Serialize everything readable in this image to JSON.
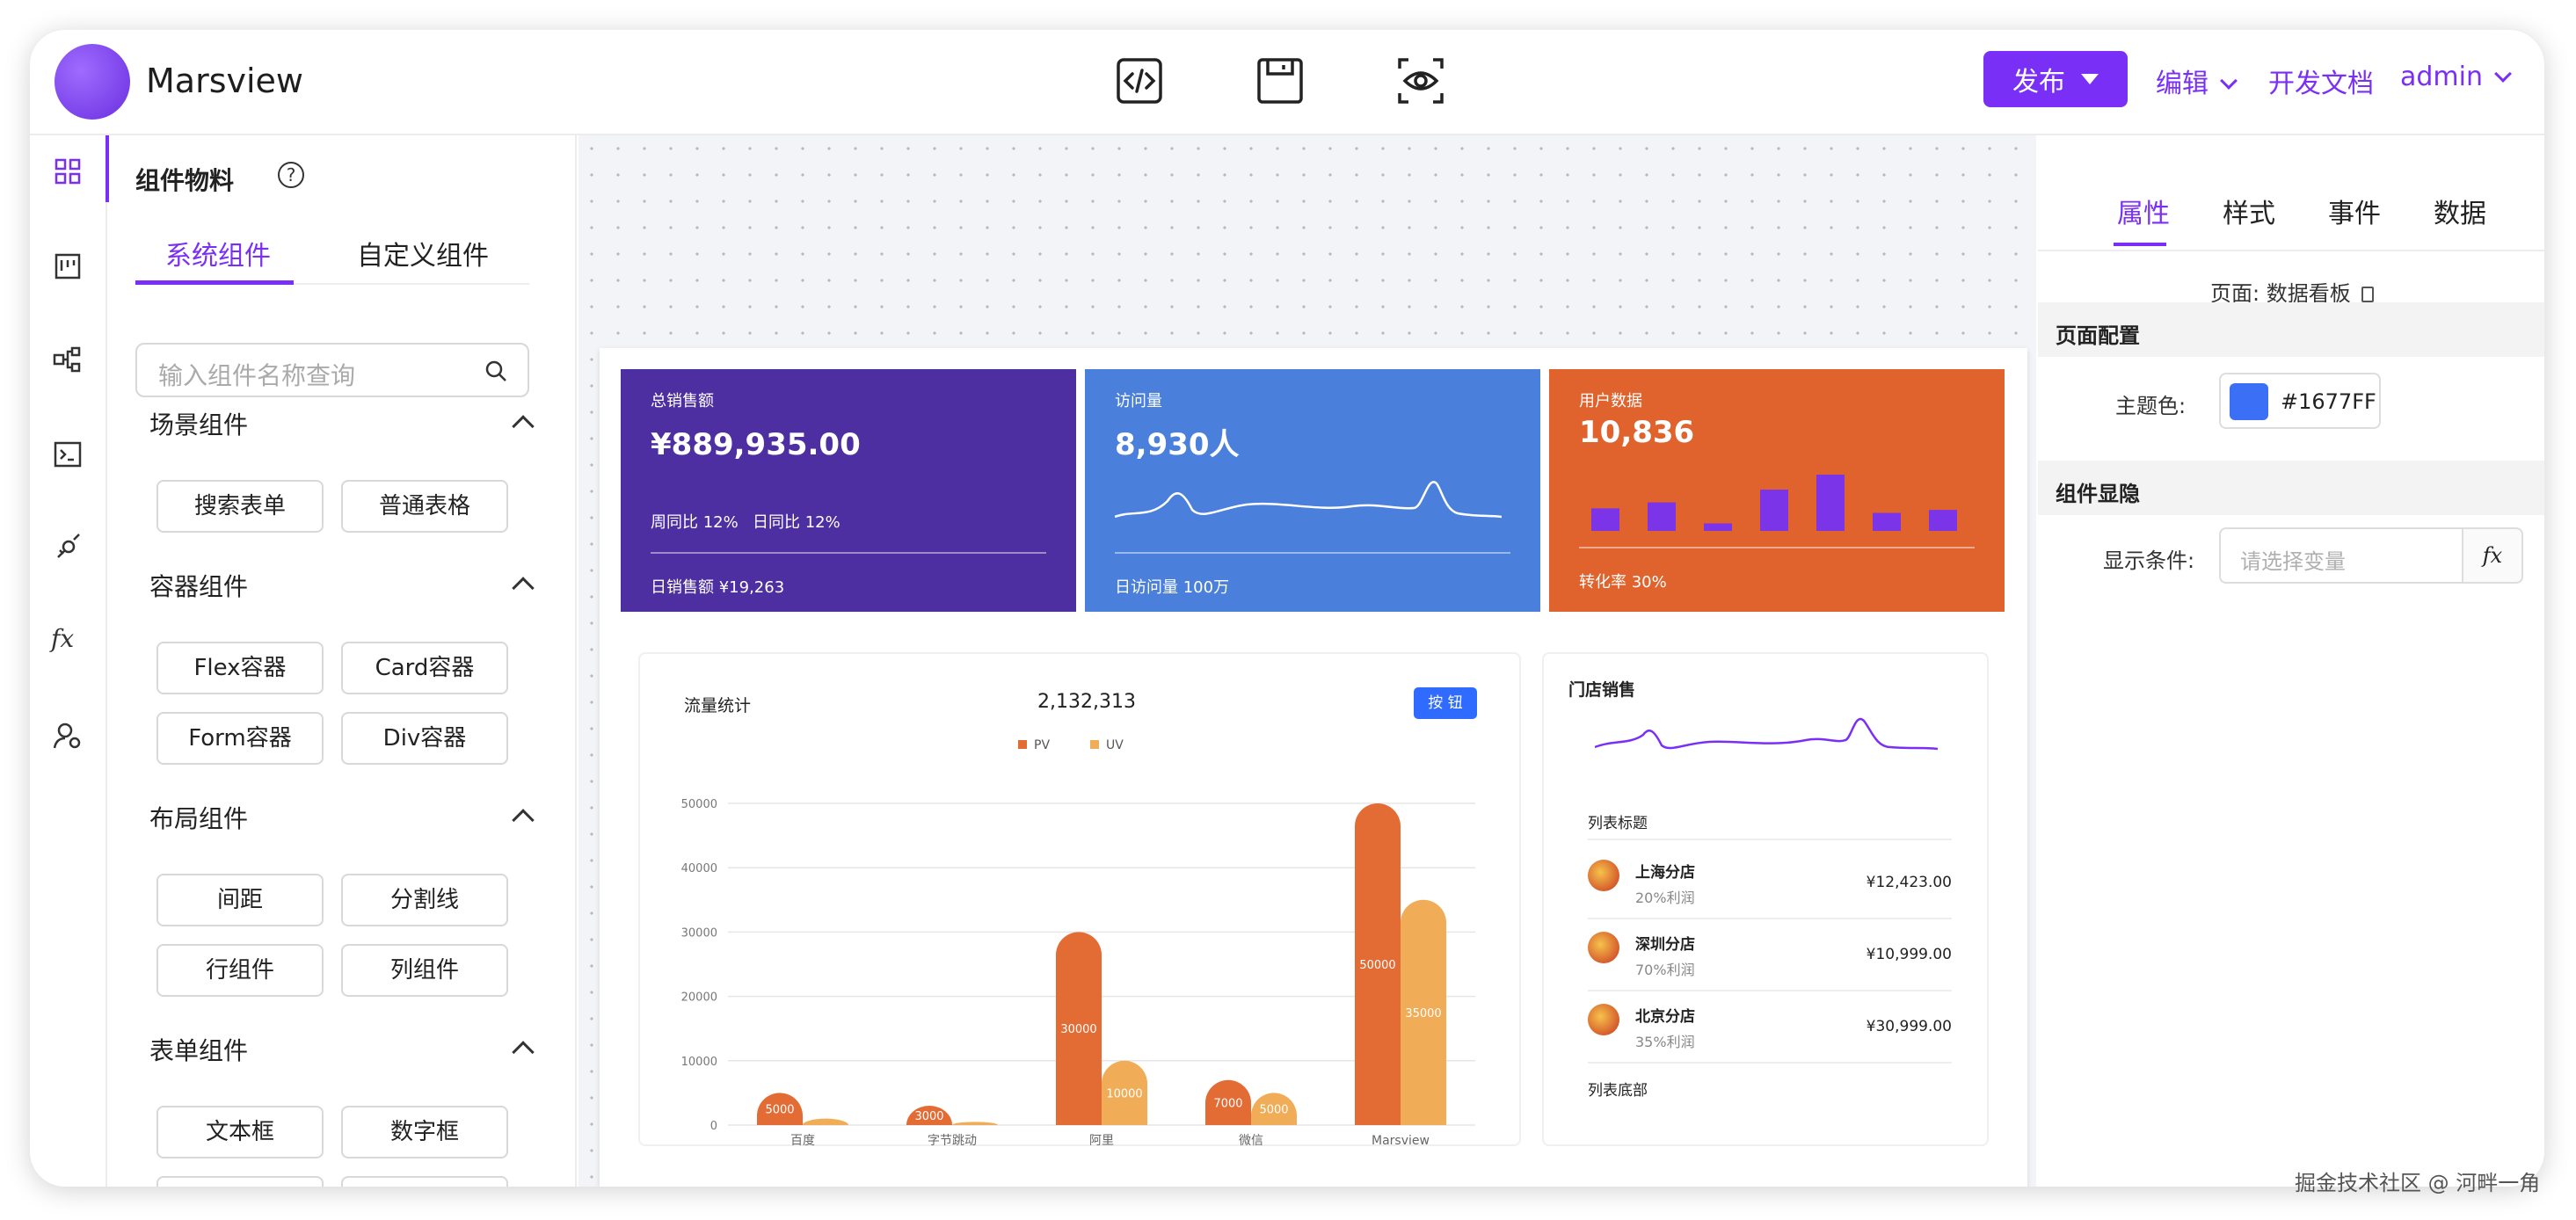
{
  "header": {
    "app_name": "Marsview",
    "publish": "发布",
    "edit": "编辑",
    "docs": "开发文档",
    "user": "admin"
  },
  "left_panel": {
    "title": "组件物料",
    "tabs": [
      "系统组件",
      "自定义组件"
    ],
    "search_placeholder": "输入组件名称查询",
    "groups": [
      {
        "name": "场景组件",
        "items": [
          "搜索表单",
          "普通表格"
        ]
      },
      {
        "name": "容器组件",
        "items": [
          "Flex容器",
          "Card容器",
          "Form容器",
          "Div容器"
        ]
      },
      {
        "name": "布局组件",
        "items": [
          "间距",
          "分割线",
          "行组件",
          "列组件"
        ]
      },
      {
        "name": "表单组件",
        "items": [
          "文本框",
          "数字框"
        ]
      }
    ]
  },
  "rail": {
    "fx": "fx"
  },
  "cards": [
    {
      "label": "总销售额",
      "value": "¥889,935.00",
      "stat1": "周同比 12%",
      "stat2": "日同比 12%",
      "footer": "日销售额 ¥19,263",
      "color": "#4d2fa1"
    },
    {
      "label": "访问量",
      "value": "8,930人",
      "footer": "日访问量 100万",
      "color": "#4a7fdc"
    },
    {
      "label": "用户数据",
      "value": "10,836",
      "footer": "转化率 30%",
      "color": "#e0622c",
      "bars": [
        30,
        38,
        10,
        55,
        75,
        24,
        28
      ]
    }
  ],
  "chart_panel": {
    "title": "流量统计",
    "total": "2,132,313",
    "button": "按 钮"
  },
  "chart_data": {
    "type": "bar",
    "title": "流量统计",
    "categories": [
      "百度",
      "字节跳动",
      "阿里",
      "微信",
      "Marsview"
    ],
    "series": [
      {
        "name": "PV",
        "values": [
          5000,
          3000,
          30000,
          7000,
          50000
        ],
        "color": "#e36c35"
      },
      {
        "name": "UV",
        "values": [
          1000,
          500,
          10000,
          5000,
          35000
        ],
        "color": "#f0ac56"
      }
    ],
    "ylim": [
      0,
      50000
    ],
    "yticks": [
      0,
      10000,
      20000,
      30000,
      40000,
      50000
    ],
    "ytick_labels": [
      "0",
      "10000",
      "20000",
      "30000",
      "40000",
      "50000"
    ],
    "data_labels": [
      [
        "5000",
        "3000",
        "30000",
        "7000",
        "50000"
      ],
      [
        "",
        "",
        "10000",
        "5000",
        "35000"
      ]
    ],
    "legend": "top-center"
  },
  "store_panel": {
    "title": "门店销售",
    "list_title": "列表标题",
    "list_footer": "列表底部",
    "items": [
      {
        "name": "上海分店",
        "sub": "20%利润",
        "amount": "¥12,423.00"
      },
      {
        "name": "深圳分店",
        "sub": "70%利润",
        "amount": "¥10,999.00"
      },
      {
        "name": "北京分店",
        "sub": "35%利润",
        "amount": "¥30,999.00"
      }
    ]
  },
  "right_panel": {
    "tabs": [
      "属性",
      "样式",
      "事件",
      "数据"
    ],
    "page_label": "页面: 数据看板",
    "section1": "页面配置",
    "theme_label": "主题色:",
    "theme_value": "#1677FF",
    "theme_color": "#3b6ff5",
    "section2": "组件显隐",
    "cond_label": "显示条件:",
    "cond_placeholder": "请选择变量",
    "fx": "fx"
  },
  "watermark": "掘金技术社区 @ 河畔一角"
}
